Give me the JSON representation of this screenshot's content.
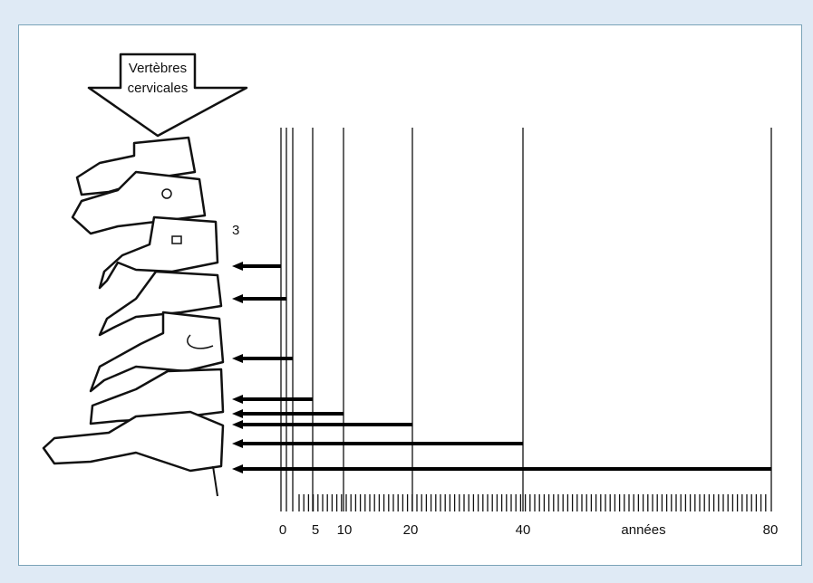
{
  "arrow_label": {
    "line1": "Vertèbres",
    "line2": "cervicales"
  },
  "vertebra_number": "3",
  "axis": {
    "ticks": [
      0,
      5,
      10,
      20,
      40,
      80
    ],
    "unit": "années"
  }
}
